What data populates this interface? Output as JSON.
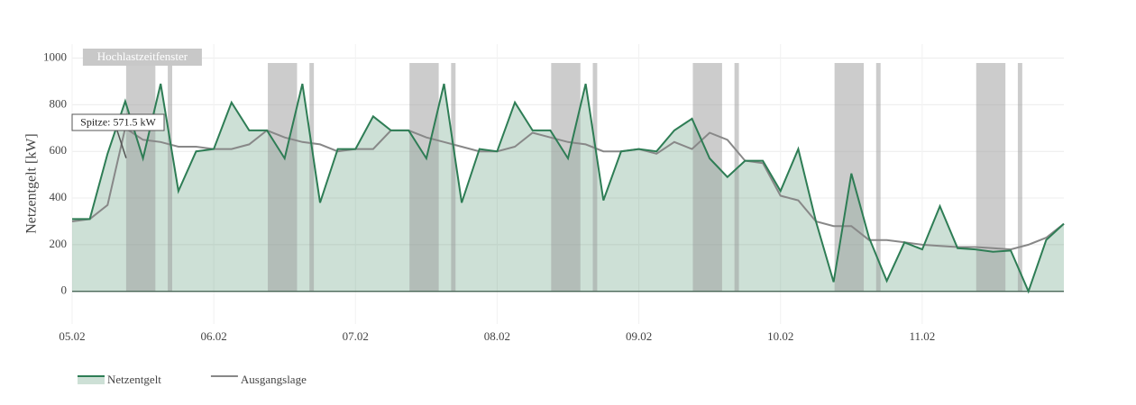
{
  "chart_data": {
    "type": "line",
    "y_label": "Netzentgelt [kW]",
    "categories": [
      "05.02",
      null,
      null,
      null,
      null,
      null,
      null,
      null,
      "06.02",
      null,
      null,
      null,
      null,
      null,
      null,
      null,
      "07.02",
      null,
      null,
      null,
      null,
      null,
      null,
      null,
      "08.02",
      null,
      null,
      null,
      null,
      null,
      null,
      null,
      "09.02",
      null,
      null,
      null,
      null,
      null,
      null,
      null,
      "10.02",
      null,
      null,
      null,
      null,
      null,
      null,
      null,
      "11.02",
      null,
      null,
      null,
      null,
      null,
      null,
      null,
      null
    ],
    "series": [
      {
        "name": "Netzentgelt",
        "color": "#2e7d55",
        "fill": true,
        "values": [
          310,
          310,
          590,
          815,
          570,
          890,
          430,
          600,
          610,
          810,
          690,
          690,
          570,
          890,
          380,
          610,
          610,
          750,
          690,
          690,
          570,
          890,
          380,
          610,
          600,
          810,
          690,
          690,
          570,
          890,
          390,
          600,
          610,
          600,
          690,
          740,
          570,
          490,
          560,
          560,
          430,
          610,
          300,
          40,
          505,
          230,
          45,
          210,
          180,
          365,
          185,
          180,
          170,
          175,
          0,
          220,
          290
        ]
      },
      {
        "name": "Ausgangslage",
        "color": "#888888",
        "fill": false,
        "values": [
          300,
          310,
          370,
          700,
          650,
          640,
          620,
          620,
          610,
          610,
          630,
          690,
          660,
          640,
          630,
          600,
          610,
          610,
          690,
          690,
          660,
          640,
          620,
          600,
          600,
          620,
          680,
          660,
          640,
          630,
          600,
          600,
          610,
          590,
          640,
          610,
          680,
          650,
          560,
          550,
          410,
          390,
          300,
          280,
          280,
          220,
          220,
          210,
          200,
          195,
          190,
          190,
          185,
          180,
          200,
          230,
          290
        ]
      }
    ],
    "window_label": "Hochlastzeitfenster",
    "windows": [
      {
        "from": 3.05,
        "to": 4.7
      },
      {
        "from": 5.4,
        "to": 5.65
      },
      {
        "from": 11.05,
        "to": 12.7
      },
      {
        "from": 13.4,
        "to": 13.65
      },
      {
        "from": 19.05,
        "to": 20.7
      },
      {
        "from": 21.4,
        "to": 21.65
      },
      {
        "from": 27.05,
        "to": 28.7
      },
      {
        "from": 29.4,
        "to": 29.65
      },
      {
        "from": 35.05,
        "to": 36.7
      },
      {
        "from": 37.4,
        "to": 37.65
      },
      {
        "from": 43.05,
        "to": 44.7
      },
      {
        "from": 45.4,
        "to": 45.65
      },
      {
        "from": 51.05,
        "to": 52.7
      },
      {
        "from": 53.4,
        "to": 53.65
      }
    ],
    "annotation": {
      "text": "Spitze: 571.5 kW",
      "x": 3.05,
      "y": 571.5
    },
    "ylim": [
      -140,
      1060
    ],
    "yticks": [
      0,
      200,
      400,
      600,
      800,
      1000
    ],
    "grid": true
  }
}
